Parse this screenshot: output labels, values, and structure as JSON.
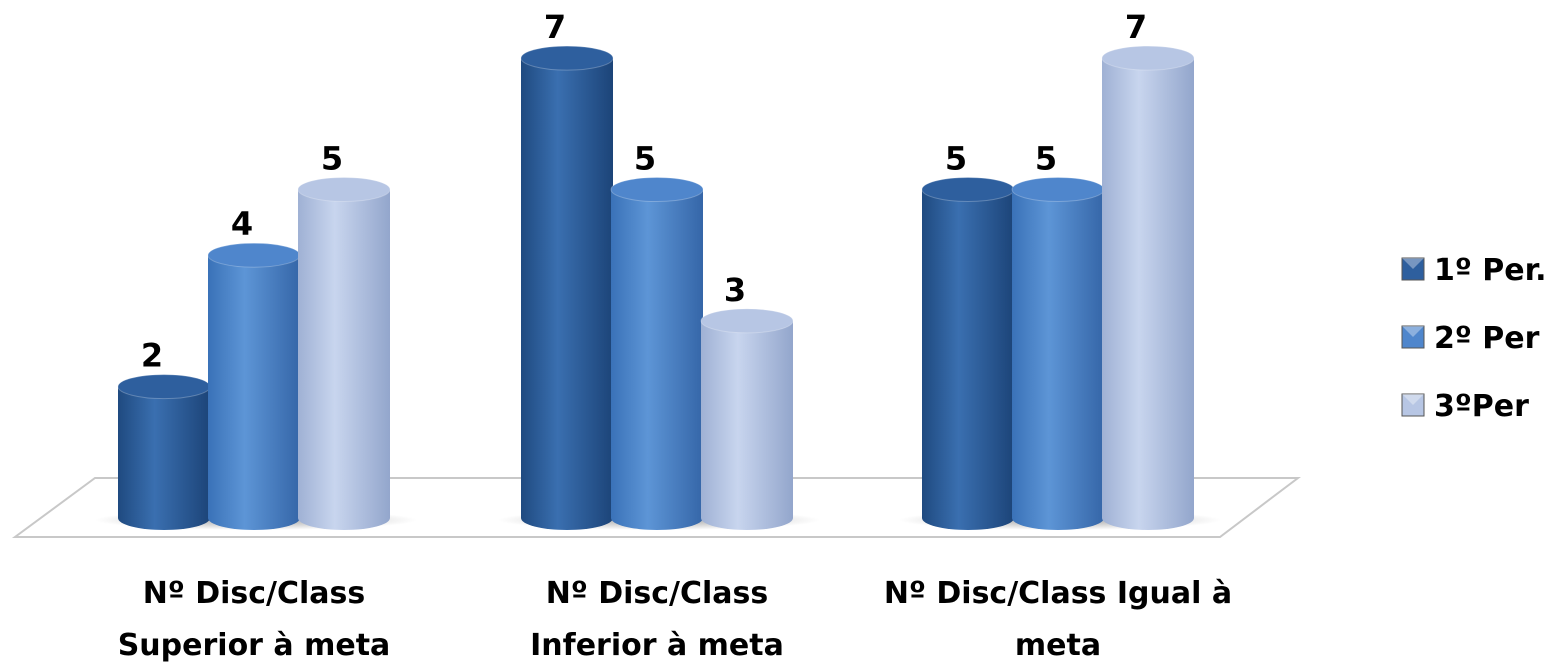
{
  "chart_data": {
    "type": "bar",
    "categories": [
      [
        "Nº Disc/Class",
        "Superior à meta"
      ],
      [
        "Nº Disc/Class",
        "Inferior à meta"
      ],
      [
        "Nº Disc/Class Igual à",
        "meta"
      ]
    ],
    "series": [
      {
        "name": "1º Per.",
        "values": [
          2,
          7,
          5
        ],
        "color": "#2e5f9e"
      },
      {
        "name": "2º Per",
        "values": [
          4,
          5,
          5
        ],
        "color": "#4f86cc"
      },
      {
        "name": "3ºPer",
        "values": [
          5,
          3,
          7
        ],
        "color": "#b7c6e4"
      }
    ],
    "ylim": [
      0,
      7
    ],
    "grid": false,
    "legend_position": "right",
    "style": "3d-cylinder"
  }
}
